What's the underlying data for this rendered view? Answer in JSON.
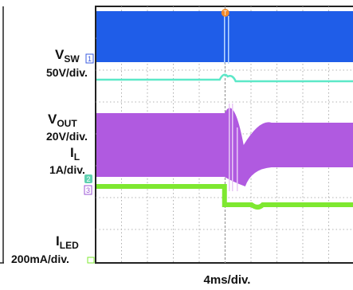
{
  "chart_data": {
    "type": "line",
    "title": "",
    "xlabel": "4ms/div.",
    "grid": true,
    "time_per_div": "4ms/div.",
    "channels": [
      {
        "name_main": "V",
        "name_sub": "SW",
        "scale": "50V/div.",
        "marker": "1",
        "color": "#1f5de8"
      },
      {
        "name_main": "V",
        "name_sub": "OUT",
        "scale": "20V/div.",
        "marker": "",
        "color": "#5ce8c8"
      },
      {
        "name_main": "I",
        "name_sub": "L",
        "scale": "1A/div.",
        "marker": "3",
        "color": "#b05ae0"
      },
      {
        "name_main": "I",
        "name_sub": "LED",
        "scale": "200mA/div.",
        "marker": "2",
        "color": "#7ee830"
      }
    ],
    "trigger_marker": "T",
    "trigger_color": "#f28a2a",
    "event_division": 5.1
  }
}
